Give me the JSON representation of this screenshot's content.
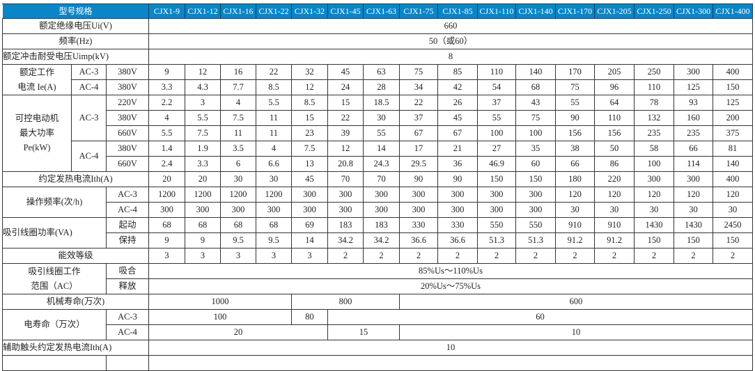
{
  "header": {
    "label": "型号规格",
    "models": [
      "CJX1-9",
      "CJX1-12",
      "CJX1-16",
      "CJX1-22",
      "CJX1-32",
      "CJX1-45",
      "CJX1-63",
      "CJX1-75",
      "CJX1-85",
      "CJX1-110",
      "CJX1-140",
      "CJX1-170",
      "CJX1-205",
      "CJX1-250",
      "CJX1-300",
      "CJX1-400"
    ],
    "color": "#0a86c8"
  },
  "insulation_voltage": {
    "label": "额定绝缘电压Ui(V)",
    "value": "660"
  },
  "frequency": {
    "label": "频率(Hz)",
    "value": "50（或60）"
  },
  "impulse_voltage": {
    "label": "额定冲击耐受电压Uimp(kV)",
    "value": "8"
  },
  "rated_current": {
    "label_lines": [
      "额定工作",
      "电流 Ie(A)"
    ],
    "rows": [
      {
        "category": "AC-3",
        "voltage": "380V",
        "values": [
          "9",
          "12",
          "16",
          "22",
          "32",
          "45",
          "63",
          "75",
          "85",
          "110",
          "140",
          "170",
          "205",
          "250",
          "300",
          "400"
        ]
      },
      {
        "category": "AC-4",
        "voltage": "380V",
        "values": [
          "3.3",
          "4.3",
          "7.7",
          "8.5",
          "12",
          "24",
          "28",
          "34",
          "42",
          "54",
          "68",
          "75",
          "96",
          "110",
          "125",
          "150"
        ]
      }
    ]
  },
  "motor_power": {
    "label_lines": [
      "可控电动机",
      "最大功率",
      "Pe(kW)"
    ],
    "groups": [
      {
        "category": "AC-3",
        "rows": [
          {
            "voltage": "220V",
            "values": [
              "2.2",
              "3",
              "4",
              "5.5",
              "8.5",
              "15",
              "18.5",
              "22",
              "26",
              "37",
              "43",
              "55",
              "64",
              "78",
              "93",
              "125"
            ]
          },
          {
            "voltage": "380V",
            "values": [
              "4",
              "5.5",
              "7.5",
              "11",
              "15",
              "22",
              "30",
              "37",
              "45",
              "55",
              "75",
              "90",
              "110",
              "132",
              "160",
              "200"
            ]
          },
          {
            "voltage": "660V",
            "values": [
              "5.5",
              "7.5",
              "11",
              "11",
              "23",
              "39",
              "55",
              "67",
              "67",
              "100",
              "100",
              "156",
              "156",
              "235",
              "235",
              "375"
            ]
          }
        ]
      },
      {
        "category": "AC-4",
        "rows": [
          {
            "voltage": "380V",
            "values": [
              "1.4",
              "1.9",
              "3.5",
              "4",
              "7.5",
              "12",
              "14",
              "17",
              "21",
              "27",
              "35",
              "38",
              "50",
              "58",
              "66",
              "81"
            ]
          },
          {
            "voltage": "660V",
            "values": [
              "2.4",
              "3.3",
              "6",
              "6.6",
              "13",
              "20.8",
              "24.3",
              "29.5",
              "36",
              "46.9",
              "60",
              "66",
              "86",
              "100",
              "114",
              "140"
            ]
          }
        ]
      }
    ]
  },
  "thermal_current": {
    "label": "约定发热电流Ith(A)",
    "values": [
      "20",
      "20",
      "30",
      "30",
      "45",
      "70",
      "70",
      "90",
      "90",
      "150",
      "150",
      "180",
      "220",
      "300",
      "300",
      "400"
    ]
  },
  "operating_frequency": {
    "label": "操作频率(次/h)",
    "rows": [
      {
        "category": "AC-3",
        "values": [
          "1200",
          "1200",
          "1200",
          "1200",
          "300",
          "300",
          "300",
          "300",
          "300",
          "300",
          "300",
          "120",
          "120",
          "120",
          "120",
          "120"
        ]
      },
      {
        "category": "AC-4",
        "values": [
          "300",
          "300",
          "300",
          "300",
          "300",
          "300",
          "300",
          "300",
          "300",
          "300",
          "300",
          "30",
          "30",
          "30",
          "30",
          "30"
        ]
      }
    ]
  },
  "coil_power": {
    "label": "吸引线圈功率(VA)",
    "rows": [
      {
        "category": "起动",
        "values": [
          "68",
          "68",
          "68",
          "68",
          "69",
          "183",
          "183",
          "330",
          "330",
          "550",
          "550",
          "910",
          "910",
          "1430",
          "1430",
          "2450"
        ]
      },
      {
        "category": "保持",
        "values": [
          "9",
          "9",
          "9.5",
          "9.5",
          "14",
          "34.2",
          "34.2",
          "36.6",
          "36.6",
          "51.3",
          "51.3",
          "91.2",
          "91.2",
          "150",
          "150",
          "150"
        ]
      }
    ]
  },
  "efficiency_class": {
    "label": "能效等级",
    "values": [
      "3",
      "3",
      "3",
      "3",
      "3",
      "2",
      "2",
      "2",
      "2",
      "2",
      "2",
      "2",
      "2",
      "2",
      "2",
      "2"
    ]
  },
  "coil_range": {
    "label_lines": [
      "吸引线圈工作",
      "范围（AC）"
    ],
    "rows": [
      {
        "category": "吸合",
        "value": "85%Us～110%Us"
      },
      {
        "category": "释放",
        "value": "20%Us～75%Us"
      }
    ]
  },
  "mechanical_life": {
    "label": "机械寿命(万次)",
    "groups": [
      {
        "value": "1000",
        "span": 4
      },
      {
        "value": "800",
        "span": 3
      },
      {
        "value": "600",
        "span": 9
      }
    ]
  },
  "electrical_life": {
    "label": "电寿命（万次）",
    "rows": [
      {
        "category": "AC-3",
        "groups": [
          {
            "value": "100",
            "span": 4
          },
          {
            "value": "80",
            "span": 1
          },
          {
            "value": "60",
            "span": 11
          }
        ]
      },
      {
        "category": "AC-4",
        "groups": [
          {
            "value": "20",
            "span": 5
          },
          {
            "value": "15",
            "span": 2
          },
          {
            "value": "10",
            "span": 9
          }
        ]
      }
    ]
  },
  "aux_thermal_current": {
    "label": "辅助触头约定发热电流Ith(A)",
    "value": "10"
  }
}
